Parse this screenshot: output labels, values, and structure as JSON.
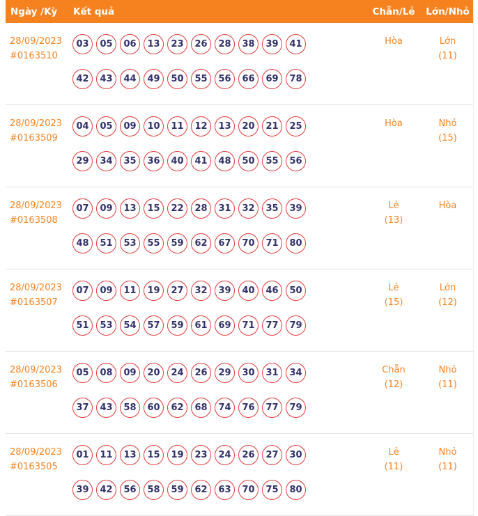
{
  "colors": {
    "header_bg": "#f6821f",
    "header_text": "#ffffff",
    "accent": "#f6821f",
    "ball_border": "#e23b3c",
    "ball_text": "#30306b",
    "divider": "#e3e3e3"
  },
  "table": {
    "headers": {
      "date": "Ngày /Kỳ",
      "result": "Kết quả",
      "even_odd": "Chẵn/Lẻ",
      "big_small": "Lớn/Nhỏ"
    },
    "rows": [
      {
        "date": "28/09/2023",
        "period": "#0163510",
        "numbers": [
          "03",
          "05",
          "06",
          "13",
          "23",
          "26",
          "28",
          "38",
          "39",
          "41",
          "42",
          "43",
          "44",
          "49",
          "50",
          "55",
          "56",
          "66",
          "69",
          "78"
        ],
        "even_odd": {
          "label": "Hòa",
          "count": ""
        },
        "big_small": {
          "label": "Lớn",
          "count": "(11)"
        }
      },
      {
        "date": "28/09/2023",
        "period": "#0163509",
        "numbers": [
          "04",
          "05",
          "09",
          "10",
          "11",
          "12",
          "13",
          "20",
          "21",
          "25",
          "29",
          "34",
          "35",
          "36",
          "40",
          "41",
          "48",
          "50",
          "55",
          "56"
        ],
        "even_odd": {
          "label": "Hòa",
          "count": ""
        },
        "big_small": {
          "label": "Nhỏ",
          "count": "(15)"
        }
      },
      {
        "date": "28/09/2023",
        "period": "#0163508",
        "numbers": [
          "07",
          "09",
          "13",
          "15",
          "22",
          "28",
          "31",
          "32",
          "35",
          "39",
          "48",
          "51",
          "53",
          "55",
          "59",
          "62",
          "67",
          "70",
          "71",
          "80"
        ],
        "even_odd": {
          "label": "Lẻ",
          "count": "(13)"
        },
        "big_small": {
          "label": "Hòa",
          "count": ""
        }
      },
      {
        "date": "28/09/2023",
        "period": "#0163507",
        "numbers": [
          "07",
          "09",
          "11",
          "19",
          "27",
          "32",
          "39",
          "40",
          "46",
          "50",
          "51",
          "53",
          "54",
          "57",
          "59",
          "61",
          "69",
          "71",
          "77",
          "79"
        ],
        "even_odd": {
          "label": "Lẻ",
          "count": "(15)"
        },
        "big_small": {
          "label": "Lớn",
          "count": "(12)"
        }
      },
      {
        "date": "28/09/2023",
        "period": "#0163506",
        "numbers": [
          "05",
          "08",
          "09",
          "20",
          "24",
          "26",
          "29",
          "30",
          "31",
          "34",
          "37",
          "43",
          "58",
          "60",
          "62",
          "68",
          "74",
          "76",
          "77",
          "79"
        ],
        "even_odd": {
          "label": "Chẵn",
          "count": "(12)"
        },
        "big_small": {
          "label": "Nhỏ",
          "count": "(11)"
        }
      },
      {
        "date": "28/09/2023",
        "period": "#0163505",
        "numbers": [
          "01",
          "11",
          "13",
          "15",
          "19",
          "23",
          "24",
          "26",
          "27",
          "30",
          "39",
          "42",
          "56",
          "58",
          "59",
          "62",
          "63",
          "70",
          "75",
          "80"
        ],
        "even_odd": {
          "label": "Lẻ",
          "count": "(11)"
        },
        "big_small": {
          "label": "Nhỏ",
          "count": "(11)"
        }
      }
    ]
  }
}
